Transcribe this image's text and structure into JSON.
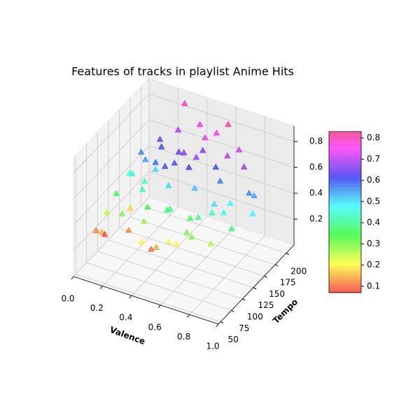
{
  "chart_data": {
    "type": "scatter3d",
    "title": "Features of tracks in playlist Anime Hits",
    "x_label": "Valence",
    "y_label": "Tempo",
    "colormap": "hsv",
    "marker": "triangle",
    "x": [
      0.05,
      0.08,
      0.1,
      0.12,
      0.15,
      0.18,
      0.2,
      0.22,
      0.25,
      0.28,
      0.3,
      0.32,
      0.35,
      0.38,
      0.4,
      0.42,
      0.45,
      0.48,
      0.5,
      0.52,
      0.55,
      0.58,
      0.6,
      0.62,
      0.65,
      0.68,
      0.7,
      0.72,
      0.75,
      0.78,
      0.8,
      0.85,
      0.9,
      0.1,
      0.2,
      0.3,
      0.4,
      0.5,
      0.6,
      0.7,
      0.15,
      0.25,
      0.35,
      0.45,
      0.55,
      0.65,
      0.05,
      0.12,
      0.22,
      0.33,
      0.44,
      0.56,
      0.67,
      0.78,
      0.88,
      0.95,
      0.3,
      0.5,
      0.2,
      0.4
    ],
    "y": [
      80,
      95,
      110,
      70,
      130,
      150,
      90,
      170,
      120,
      140,
      185,
      100,
      160,
      75,
      130,
      195,
      110,
      150,
      175,
      90,
      140,
      120,
      200,
      165,
      100,
      155,
      130,
      185,
      110,
      145,
      170,
      125,
      160,
      140,
      180,
      115,
      90,
      160,
      105,
      135,
      125,
      150,
      170,
      85,
      190,
      115,
      100,
      160,
      135,
      145,
      120,
      95,
      175,
      130,
      155,
      140,
      200,
      180,
      105,
      165
    ],
    "z": [
      0.25,
      0.35,
      0.45,
      0.3,
      0.55,
      0.6,
      0.4,
      0.7,
      0.5,
      0.65,
      0.75,
      0.35,
      0.6,
      0.3,
      0.55,
      0.8,
      0.45,
      0.65,
      0.7,
      0.3,
      0.55,
      0.4,
      0.85,
      0.65,
      0.35,
      0.6,
      0.45,
      0.75,
      0.3,
      0.5,
      0.7,
      0.4,
      0.55,
      0.5,
      0.6,
      0.4,
      0.2,
      0.7,
      0.35,
      0.5,
      0.3,
      0.55,
      0.65,
      0.25,
      0.8,
      0.45,
      0.15,
      0.6,
      0.5,
      0.62,
      0.42,
      0.28,
      0.72,
      0.48,
      0.58,
      0.5,
      0.9,
      0.78,
      0.22,
      0.68
    ],
    "color_values": [
      0.12,
      0.25,
      0.35,
      0.15,
      0.45,
      0.55,
      0.3,
      0.65,
      0.42,
      0.58,
      0.7,
      0.28,
      0.6,
      0.2,
      0.5,
      0.78,
      0.4,
      0.62,
      0.66,
      0.22,
      0.52,
      0.36,
      0.82,
      0.6,
      0.3,
      0.57,
      0.44,
      0.72,
      0.26,
      0.48,
      0.68,
      0.38,
      0.54,
      0.46,
      0.6,
      0.34,
      0.1,
      0.68,
      0.3,
      0.5,
      0.18,
      0.5,
      0.64,
      0.14,
      0.76,
      0.4,
      0.08,
      0.56,
      0.44,
      0.6,
      0.38,
      0.2,
      0.7,
      0.46,
      0.56,
      0.48,
      0.8,
      0.74,
      0.12,
      0.66
    ],
    "xlim": [
      0,
      1
    ],
    "ylim": [
      45,
      218
    ],
    "zlim": [
      0,
      0.92
    ],
    "clim": [
      0.07,
      0.83
    ],
    "xticks": [
      {
        "value": 0,
        "label": "0.0"
      },
      0.2,
      0.4,
      0.6,
      0.8,
      {
        "value": 1,
        "label": "1.0"
      }
    ],
    "yticks": [
      50,
      75,
      100,
      125,
      150,
      175,
      200
    ],
    "zticks": [
      0.2,
      0.4,
      0.6,
      0.8
    ],
    "cticks": [
      0.1,
      0.2,
      0.3,
      0.4,
      0.5,
      0.6,
      0.7,
      0.8
    ],
    "grid": true
  }
}
